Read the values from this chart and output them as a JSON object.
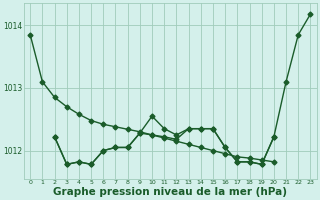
{
  "bg_color": "#d4f0eb",
  "grid_color": "#a0ccbb",
  "line_color": "#1a5c2a",
  "xlabel": "Graphe pression niveau de la mer (hPa)",
  "xlabel_fontsize": 7.5,
  "x_ticks": [
    0,
    1,
    2,
    3,
    4,
    5,
    6,
    7,
    8,
    9,
    10,
    11,
    12,
    13,
    14,
    15,
    16,
    17,
    18,
    19,
    20,
    21,
    22,
    23
  ],
  "ylim": [
    1011.55,
    1014.35
  ],
  "yticks": [
    1012,
    1013,
    1014
  ],
  "series": [
    {
      "x": [
        0,
        1,
        2,
        3,
        4,
        5,
        6,
        7,
        8,
        9,
        10,
        11,
        12,
        13,
        14,
        15,
        16,
        17,
        18,
        19,
        20
      ],
      "y": [
        1013.85,
        1013.1,
        1012.85,
        1012.7,
        1012.58,
        1012.48,
        1012.42,
        1012.38,
        1012.34,
        1012.3,
        1012.25,
        1012.2,
        1012.15,
        1012.1,
        1012.05,
        1012.0,
        1011.95,
        1011.9,
        1011.88,
        1011.85,
        1011.82
      ],
      "marker": "D",
      "markersize": 2.5,
      "linewidth": 1.0,
      "linestyle": "-"
    },
    {
      "x": [
        2,
        3,
        4,
        5,
        6,
        7,
        8,
        9,
        10,
        11,
        12,
        13,
        14,
        15,
        16,
        17,
        18,
        19,
        20
      ],
      "y": [
        1012.22,
        1011.78,
        1011.82,
        1011.78,
        1012.0,
        1012.05,
        1012.05,
        1012.28,
        1012.25,
        1012.22,
        1012.18,
        1012.35,
        1012.35,
        1012.35,
        1012.05,
        1011.82,
        1011.82,
        1011.78,
        1012.22
      ],
      "marker": "D",
      "markersize": 2.5,
      "linewidth": 1.0,
      "linestyle": "-"
    },
    {
      "x": [
        2,
        3,
        4,
        5,
        6,
        7,
        8,
        9,
        10,
        11,
        12,
        13,
        14,
        15,
        16,
        17,
        18,
        19,
        20,
        21,
        22,
        23
      ],
      "y": [
        1012.22,
        1011.78,
        1011.82,
        1011.78,
        1012.0,
        1012.05,
        1012.05,
        1012.28,
        1012.55,
        1012.35,
        1012.25,
        1012.35,
        1012.35,
        1012.35,
        1012.05,
        1011.82,
        1011.82,
        1011.78,
        1012.22,
        1013.1,
        1013.85,
        1014.18
      ],
      "marker": "D",
      "markersize": 2.5,
      "linewidth": 1.0,
      "linestyle": "-"
    }
  ]
}
